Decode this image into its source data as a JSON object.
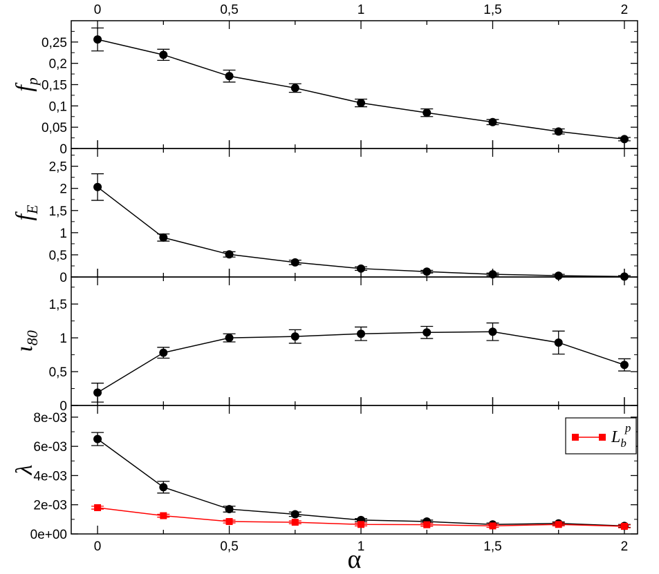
{
  "chart_data": [
    {
      "type": "scatter",
      "panel": "f_p",
      "ylabel": "f",
      "ylabel_sub": "p",
      "ylim": [
        0,
        0.3
      ],
      "yticks": [
        0,
        0.05,
        0.1,
        0.15,
        0.2,
        0.25
      ],
      "yticklabels": [
        "0",
        "0,05",
        "0,1",
        "0,15",
        "0,2",
        "0,25"
      ],
      "xlim": [
        -0.1,
        2.05
      ],
      "xticks_top": [
        0,
        0.5,
        1,
        1.5,
        2
      ],
      "xticklabels_top": [
        "0",
        "0,5",
        "1",
        "1,5",
        "2"
      ],
      "series": [
        {
          "color": "#000000",
          "marker": "circle",
          "x": [
            0,
            0.25,
            0.5,
            0.75,
            1,
            1.25,
            1.5,
            1.75,
            2
          ],
          "y": [
            0.256,
            0.22,
            0.17,
            0.142,
            0.107,
            0.084,
            0.062,
            0.04,
            0.022
          ],
          "err": [
            0.027,
            0.013,
            0.014,
            0.01,
            0.009,
            0.009,
            0.006,
            0.006,
            0.004
          ]
        }
      ]
    },
    {
      "type": "scatter",
      "panel": "f_E",
      "ylabel": "f",
      "ylabel_sub": "E",
      "ylim": [
        0,
        2.9
      ],
      "yticks": [
        0,
        0.5,
        1,
        1.5,
        2,
        2.5
      ],
      "yticklabels": [
        "0",
        "0,5",
        "1",
        "1,5",
        "2",
        "2,5"
      ],
      "xlim": [
        -0.1,
        2.05
      ],
      "series": [
        {
          "color": "#000000",
          "marker": "circle",
          "x": [
            0,
            0.25,
            0.5,
            0.75,
            1,
            1.25,
            1.5,
            1.75,
            2
          ],
          "y": [
            2.03,
            0.89,
            0.51,
            0.33,
            0.19,
            0.12,
            0.06,
            0.03,
            0.01
          ],
          "err": [
            0.3,
            0.08,
            0.06,
            0.05,
            0.04,
            0.03,
            0.03,
            0.03,
            0.02
          ]
        }
      ]
    },
    {
      "type": "scatter",
      "panel": "iota_80",
      "ylabel": "ι",
      "ylabel_sub": "80",
      "ylim": [
        0,
        1.9
      ],
      "yticks": [
        0,
        0.5,
        1,
        1.5
      ],
      "yticklabels": [
        "0",
        "0,5",
        "1",
        "1,5"
      ],
      "xlim": [
        -0.1,
        2.05
      ],
      "series": [
        {
          "color": "#000000",
          "marker": "circle",
          "x": [
            0,
            0.25,
            0.5,
            0.75,
            1,
            1.25,
            1.5,
            1.75,
            2
          ],
          "y": [
            0.19,
            0.78,
            1.0,
            1.02,
            1.06,
            1.08,
            1.09,
            0.93,
            0.6
          ],
          "err": [
            0.14,
            0.08,
            0.06,
            0.1,
            0.1,
            0.09,
            0.13,
            0.17,
            0.09
          ]
        }
      ]
    },
    {
      "type": "scatter",
      "panel": "lambda",
      "ylabel": "λ",
      "ylabel_sub": "",
      "xlabel": "α",
      "ylim": [
        0,
        0.0088
      ],
      "yticks": [
        0,
        0.002,
        0.004,
        0.006,
        0.008
      ],
      "yticklabels": [
        "0e+00",
        "2e-03",
        "4e-03",
        "6e-03",
        "8e-03"
      ],
      "xlim": [
        -0.1,
        2.05
      ],
      "xticks_bottom": [
        0,
        0.5,
        1,
        1.5,
        2
      ],
      "xticklabels_bottom": [
        "0",
        "0,5",
        "1",
        "1,5",
        "2"
      ],
      "legend": {
        "position": "top-right",
        "label": "L",
        "sub": "b",
        "sup": "p",
        "color": "#ff0000"
      },
      "series": [
        {
          "color": "#000000",
          "marker": "circle",
          "x": [
            0,
            0.25,
            0.5,
            0.75,
            1,
            1.25,
            1.5,
            1.75,
            2
          ],
          "y": [
            0.0065,
            0.0032,
            0.0017,
            0.00135,
            0.00095,
            0.00085,
            0.00065,
            0.00072,
            0.00055
          ],
          "err": [
            0.00045,
            0.0004,
            0.0002,
            0.00015,
            0.0001,
            0.0001,
            0.0001,
            0.0001,
            0.0001
          ]
        },
        {
          "name": "L_b^p",
          "color": "#ff0000",
          "marker": "square",
          "x": [
            0,
            0.25,
            0.5,
            0.75,
            1,
            1.25,
            1.5,
            1.75,
            2
          ],
          "y": [
            0.0018,
            0.00125,
            0.00085,
            0.0008,
            0.00065,
            0.00063,
            0.00055,
            0.00065,
            0.00052
          ],
          "err": [
            0.0001,
            0.0001,
            0.0001,
            0.0001,
            0.0001,
            0.0001,
            0.0001,
            0.0001,
            0.0001
          ]
        }
      ]
    }
  ]
}
